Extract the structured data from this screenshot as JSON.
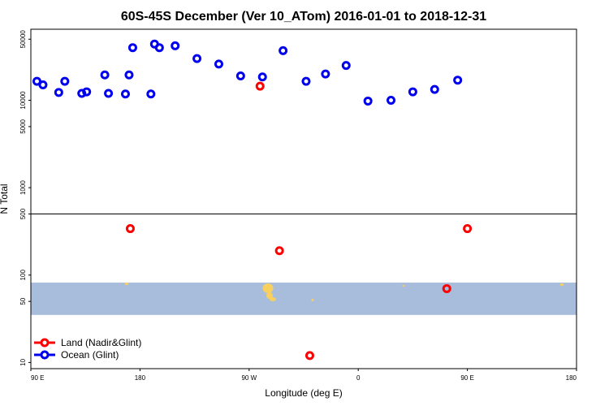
{
  "chart_data": {
    "type": "scatter",
    "title": "60S-45S December (Ver 10_ATom)   2016-01-01 to 2018-12-31",
    "xlabel": "Longitude (deg E)",
    "ylabel": "N Total",
    "x_scale": "longitude, centered on 0, 90 E to 180 E wrapping through 180",
    "y_scale": "log",
    "ylim": [
      8.5,
      65000
    ],
    "split_at": 500,
    "grid": false,
    "legend_position": "bottom-left",
    "x_ticks": [
      {
        "lon": 90,
        "label": "90 E"
      },
      {
        "lon": 180,
        "label": "180"
      },
      {
        "lon": -90,
        "label": "90 W"
      },
      {
        "lon": 0,
        "label": "0"
      },
      {
        "lon": 90,
        "label": "90 E",
        "wrap": true
      },
      {
        "lon": 180,
        "label": "180",
        "wrap": true
      }
    ],
    "y_ticks": [
      10,
      50,
      100,
      500,
      1000,
      5000,
      10000,
      50000
    ],
    "series": [
      {
        "name": "Land (Nadir&Glint)",
        "color": "#ff0000",
        "points": [
          {
            "lon": 172,
            "v": 340
          },
          {
            "lon": -81,
            "v": 14500
          },
          {
            "lon": -65,
            "v": 190
          },
          {
            "lon": -40,
            "v": 12
          },
          {
            "lon": 73,
            "v": 70
          },
          {
            "lon": 177,
            "v": 340,
            "wrap": true
          }
        ]
      },
      {
        "name": "Ocean (Glint)",
        "color": "#0000ee",
        "points": [
          {
            "lon": 95,
            "v": 16500
          },
          {
            "lon": 113,
            "v": 12300
          },
          {
            "lon": 132,
            "v": 12000
          },
          {
            "lon": 151,
            "v": 19500
          },
          {
            "lon": 168,
            "v": 11800
          },
          {
            "lon": 174,
            "v": 40000
          },
          {
            "lon": -168,
            "v": 44000
          },
          {
            "lon": -151,
            "v": 42000
          },
          {
            "lon": -133,
            "v": 30000
          },
          {
            "lon": -115,
            "v": 26000
          },
          {
            "lon": -97,
            "v": 19000
          },
          {
            "lon": -79,
            "v": 18500
          },
          {
            "lon": -62,
            "v": 37000
          },
          {
            "lon": -43,
            "v": 16500
          },
          {
            "lon": -27,
            "v": 20000
          },
          {
            "lon": -10,
            "v": 25000
          },
          {
            "lon": 8,
            "v": 9800
          },
          {
            "lon": 27,
            "v": 10000
          },
          {
            "lon": 45,
            "v": 12500
          },
          {
            "lon": 63,
            "v": 13300
          },
          {
            "lon": 82,
            "v": 17000
          },
          {
            "lon": 100,
            "v": 15000
          },
          {
            "lon": 118,
            "v": 16500
          },
          {
            "lon": 136,
            "v": 12500
          },
          {
            "lon": 154,
            "v": 12000
          },
          {
            "lon": 171,
            "v": 19500
          },
          {
            "lon": 189,
            "v": 11800
          },
          {
            "lon": 196,
            "v": 40000
          }
        ]
      }
    ],
    "map_band": {
      "v_low": 35,
      "v_high": 82,
      "ocean_color": "#a8bcdc",
      "land_color": "#f8d060"
    }
  }
}
